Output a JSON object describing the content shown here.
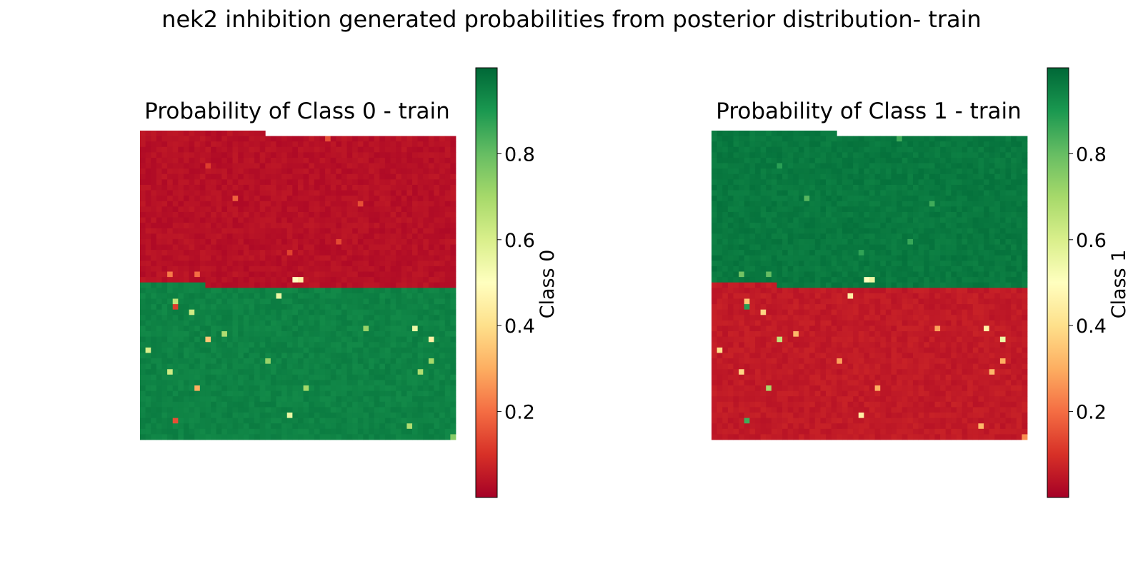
{
  "title": "nek2 inhibition generated probabilities from posterior distribution- train",
  "chart_data": [
    {
      "type": "heatmap",
      "title": "Probability of Class 0 - train",
      "colorbar_label": "Class 0",
      "colormap": "RdYlGn",
      "value_range": [
        0.0,
        1.0
      ],
      "colorbar_ticks": [
        0.2,
        0.4,
        0.6,
        0.8
      ],
      "grid": {
        "columns": 58,
        "rows": 57,
        "row_order": "top-to-bottom"
      },
      "regions": [
        {
          "rows": [
            0,
            0
          ],
          "columns": [
            0,
            22
          ],
          "base_value": 0.02
        },
        {
          "rows": [
            1,
            27
          ],
          "columns": [
            0,
            57
          ],
          "base_value": 0.02
        },
        {
          "rows": [
            28,
            28
          ],
          "columns": [
            0,
            11
          ],
          "base_value": 0.96
        },
        {
          "rows": [
            28,
            28
          ],
          "columns": [
            12,
            57
          ],
          "base_value": 0.02
        },
        {
          "rows": [
            29,
            56
          ],
          "columns": [
            0,
            57
          ],
          "base_value": 0.96
        }
      ],
      "outliers": [
        {
          "row": 1,
          "col": 34,
          "value": 0.15
        },
        {
          "row": 6,
          "col": 12,
          "value": 0.12
        },
        {
          "row": 12,
          "col": 17,
          "value": 0.18
        },
        {
          "row": 13,
          "col": 40,
          "value": 0.15
        },
        {
          "row": 20,
          "col": 36,
          "value": 0.14
        },
        {
          "row": 22,
          "col": 27,
          "value": 0.13
        },
        {
          "row": 26,
          "col": 5,
          "value": 0.22
        },
        {
          "row": 26,
          "col": 10,
          "value": 0.2
        },
        {
          "row": 27,
          "col": 28,
          "value": 0.5
        },
        {
          "row": 27,
          "col": 29,
          "value": 0.45
        },
        {
          "row": 30,
          "col": 25,
          "value": 0.55
        },
        {
          "row": 31,
          "col": 6,
          "value": 0.65
        },
        {
          "row": 32,
          "col": 6,
          "value": 0.12
        },
        {
          "row": 33,
          "col": 9,
          "value": 0.62
        },
        {
          "row": 37,
          "col": 15,
          "value": 0.68
        },
        {
          "row": 38,
          "col": 12,
          "value": 0.35
        },
        {
          "row": 36,
          "col": 41,
          "value": 0.72
        },
        {
          "row": 36,
          "col": 50,
          "value": 0.55
        },
        {
          "row": 38,
          "col": 53,
          "value": 0.45
        },
        {
          "row": 40,
          "col": 1,
          "value": 0.6
        },
        {
          "row": 42,
          "col": 23,
          "value": 0.72
        },
        {
          "row": 42,
          "col": 53,
          "value": 0.7
        },
        {
          "row": 44,
          "col": 5,
          "value": 0.62
        },
        {
          "row": 44,
          "col": 51,
          "value": 0.68
        },
        {
          "row": 47,
          "col": 10,
          "value": 0.3
        },
        {
          "row": 47,
          "col": 30,
          "value": 0.7
        },
        {
          "row": 52,
          "col": 27,
          "value": 0.55
        },
        {
          "row": 53,
          "col": 6,
          "value": 0.15
        },
        {
          "row": 54,
          "col": 49,
          "value": 0.68
        },
        {
          "row": 56,
          "col": 57,
          "value": 0.75
        }
      ]
    },
    {
      "type": "heatmap",
      "title": "Probability of Class 1 - train",
      "colorbar_label": "Class 1",
      "colormap": "RdYlGn",
      "value_range": [
        0.0,
        1.0
      ],
      "colorbar_ticks": [
        0.2,
        0.4,
        0.6,
        0.8
      ],
      "grid": {
        "columns": 58,
        "rows": 57,
        "row_order": "top-to-bottom"
      },
      "regions": [
        {
          "rows": [
            0,
            0
          ],
          "columns": [
            0,
            22
          ],
          "base_value": 0.98
        },
        {
          "rows": [
            1,
            27
          ],
          "columns": [
            0,
            57
          ],
          "base_value": 0.98
        },
        {
          "rows": [
            28,
            28
          ],
          "columns": [
            0,
            11
          ],
          "base_value": 0.04
        },
        {
          "rows": [
            28,
            28
          ],
          "columns": [
            12,
            57
          ],
          "base_value": 0.98
        },
        {
          "rows": [
            29,
            56
          ],
          "columns": [
            0,
            57
          ],
          "base_value": 0.04
        }
      ],
      "outliers": [
        {
          "row": 1,
          "col": 34,
          "value": 0.85
        },
        {
          "row": 6,
          "col": 12,
          "value": 0.88
        },
        {
          "row": 12,
          "col": 17,
          "value": 0.82
        },
        {
          "row": 13,
          "col": 40,
          "value": 0.85
        },
        {
          "row": 20,
          "col": 36,
          "value": 0.86
        },
        {
          "row": 22,
          "col": 27,
          "value": 0.87
        },
        {
          "row": 26,
          "col": 5,
          "value": 0.78
        },
        {
          "row": 26,
          "col": 10,
          "value": 0.8
        },
        {
          "row": 27,
          "col": 28,
          "value": 0.5
        },
        {
          "row": 27,
          "col": 29,
          "value": 0.55
        },
        {
          "row": 30,
          "col": 25,
          "value": 0.45
        },
        {
          "row": 31,
          "col": 6,
          "value": 0.35
        },
        {
          "row": 32,
          "col": 6,
          "value": 0.88
        },
        {
          "row": 33,
          "col": 9,
          "value": 0.38
        },
        {
          "row": 37,
          "col": 15,
          "value": 0.32
        },
        {
          "row": 38,
          "col": 12,
          "value": 0.65
        },
        {
          "row": 36,
          "col": 41,
          "value": 0.28
        },
        {
          "row": 36,
          "col": 50,
          "value": 0.45
        },
        {
          "row": 38,
          "col": 53,
          "value": 0.55
        },
        {
          "row": 40,
          "col": 1,
          "value": 0.4
        },
        {
          "row": 42,
          "col": 23,
          "value": 0.28
        },
        {
          "row": 42,
          "col": 53,
          "value": 0.3
        },
        {
          "row": 44,
          "col": 5,
          "value": 0.38
        },
        {
          "row": 44,
          "col": 51,
          "value": 0.32
        },
        {
          "row": 47,
          "col": 10,
          "value": 0.7
        },
        {
          "row": 47,
          "col": 30,
          "value": 0.3
        },
        {
          "row": 52,
          "col": 27,
          "value": 0.45
        },
        {
          "row": 53,
          "col": 6,
          "value": 0.85
        },
        {
          "row": 54,
          "col": 49,
          "value": 0.32
        },
        {
          "row": 56,
          "col": 57,
          "value": 0.25
        }
      ]
    }
  ]
}
